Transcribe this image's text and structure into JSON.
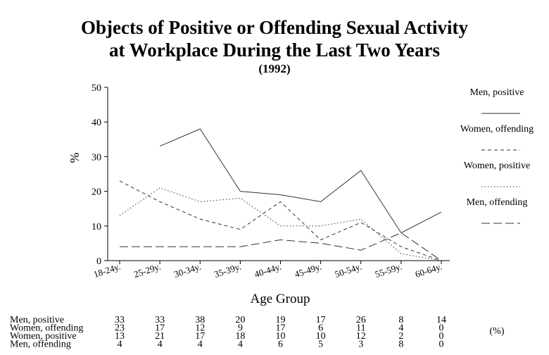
{
  "chart_data": {
    "type": "line",
    "title": "Objects of Positive or Offending Sexual Activity",
    "title_line2": "at Workplace During the Last Two Years",
    "subtitle": "(1992)",
    "xlabel": "Age Group",
    "ylabel": "%",
    "ylim": [
      0,
      50
    ],
    "yticks": [
      0,
      10,
      20,
      30,
      40,
      50
    ],
    "categories": [
      "18-24y.",
      "25-29y.",
      "30-34y.",
      "35-39y.",
      "40-44y.",
      "45-49y.",
      "50-54y.",
      "55-59y.",
      "60-64y."
    ],
    "grid": false,
    "legend_position": "right",
    "table_unit": "(%)",
    "series": [
      {
        "name": "Men, positive",
        "values": [
          33,
          33,
          38,
          20,
          19,
          17,
          26,
          8,
          14
        ],
        "dash": "",
        "plot_from": 1
      },
      {
        "name": "Women, offending",
        "values": [
          23,
          17,
          12,
          9,
          17,
          6,
          11,
          4,
          0
        ],
        "dash": "5,4",
        "plot_from": 0
      },
      {
        "name": "Women, positive",
        "values": [
          13,
          21,
          17,
          18,
          10,
          10,
          12,
          2,
          0
        ],
        "dash": "1.5,3",
        "plot_from": 0
      },
      {
        "name": "Men, offending",
        "values": [
          4,
          4,
          4,
          4,
          6,
          5,
          3,
          8,
          0
        ],
        "dash": "12,5",
        "plot_from": 0
      }
    ]
  }
}
